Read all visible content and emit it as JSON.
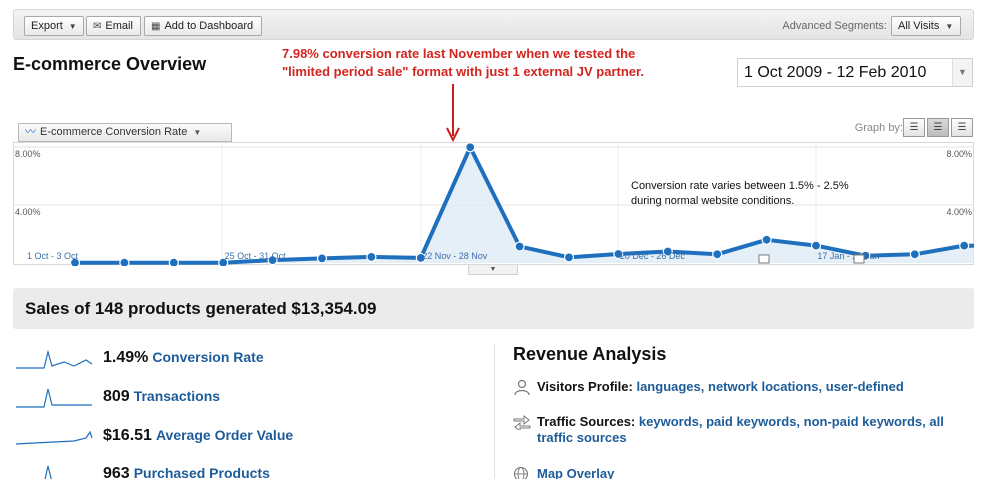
{
  "toolbar": {
    "export_label": "Export",
    "email_label": "Email",
    "dashboard_label": "Add to Dashboard",
    "segments_label": "Advanced Segments:",
    "segments_value": "All Visits"
  },
  "header": {
    "title": "E-commerce Overview",
    "annotation": "7.98% conversion rate last November when we tested the \"limited period sale\" format with just 1 external JV partner.",
    "date_range": "1 Oct 2009 - 12 Feb 2010"
  },
  "graph_controls": {
    "metric_label": "E-commerce Conversion Rate",
    "graph_by_label": "Graph by:"
  },
  "chart_data": {
    "type": "line",
    "series": [
      {
        "name": "E-commerce Conversion Rate",
        "x": [
          "1 Oct - 3 Oct",
          "4 Oct - 10 Oct",
          "11 Oct - 17 Oct",
          "18 Oct - 24 Oct",
          "25 Oct - 31 Oct",
          "1 Nov - 7 Nov",
          "8 Nov - 14 Nov",
          "15 Nov - 21 Nov",
          "22 Nov - 28 Nov",
          "29 Nov - 5 Dec",
          "6 Dec - 12 Dec",
          "13 Dec - 19 Dec",
          "20 Dec - 26 Dec",
          "27 Dec - 2 Jan",
          "3 Jan - 9 Jan",
          "10 Jan - 16 Jan",
          "17 Jan - 23 Jan",
          "24 Jan - 30 Jan",
          "31 Jan - 6 Feb",
          "7 Feb - 12 Feb"
        ],
        "values": [
          0.02,
          0.02,
          0.02,
          0.02,
          0.2,
          0.32,
          0.42,
          0.35,
          7.98,
          1.14,
          0.39,
          0.62,
          0.79,
          0.6,
          1.6,
          1.2,
          0.5,
          0.6,
          1.2,
          1.14
        ]
      }
    ],
    "x_tick_labels": [
      "1 Oct - 3 Oct",
      "25 Oct - 31 Oct",
      "22 Nov - 28 Nov",
      "20 Dec - 26 Dec",
      "17 Jan - 23 Jan"
    ],
    "y_tick_labels": [
      "8.00%",
      "4.00%"
    ],
    "ylim": [
      0,
      8
    ],
    "grid": true,
    "note": "Conversion rate varies between 1.5% - 2.5% during normal website conditions.",
    "colors": {
      "line": "#1f6fbf",
      "fill": "#dceaf6"
    }
  },
  "summary": {
    "text": "Sales of 148 products generated $13,354.09"
  },
  "metrics": [
    {
      "value": "1.49%",
      "label": "Conversion Rate"
    },
    {
      "value": "809",
      "label": "Transactions"
    },
    {
      "value": "$16.51",
      "label": "Average Order Value"
    },
    {
      "value": "963",
      "label": "Purchased Products"
    }
  ],
  "revenue": {
    "title": "Revenue Analysis",
    "visitors_label": "Visitors Profile:",
    "visitors_links": [
      "languages,",
      "network locations,",
      "user-defined"
    ],
    "traffic_label": "Traffic Sources:",
    "traffic_links": [
      "keywords,",
      "paid keywords,",
      "non-paid keywords,",
      "all traffic sources"
    ],
    "map_label": "Map Overlay"
  },
  "icons": {
    "export": "caret-down-icon",
    "email": "email-icon",
    "dashboard": "dashboard-icon",
    "line_chart": "line-chart-icon",
    "person": "person-icon",
    "traffic": "traffic-arrows-icon",
    "globe": "globe-icon"
  }
}
